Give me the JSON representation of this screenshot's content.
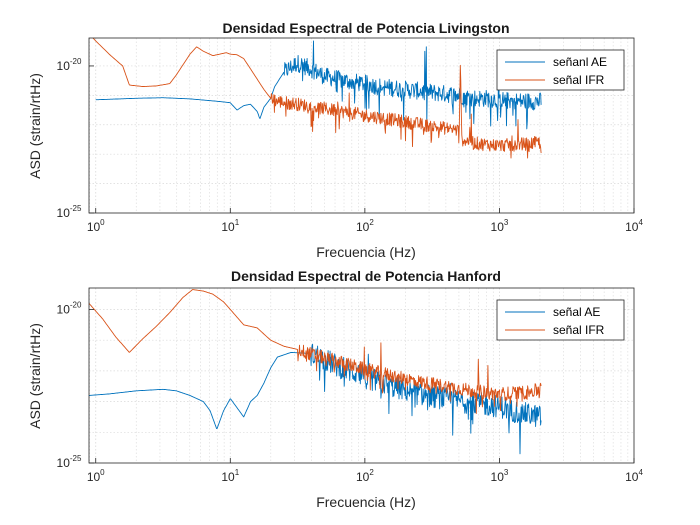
{
  "chart_data": [
    {
      "type": "line",
      "title": "Densidad Espectral de Potencia Livingston",
      "xlabel": "Frecuencia (Hz)",
      "ylabel": "ASD (strain/rtHz)",
      "xscale": "log",
      "yscale": "log",
      "xlim_exp": [
        -0.05,
        4
      ],
      "ylim_exp": [
        -25,
        -19.05
      ],
      "xticks": [
        {
          "base": "10",
          "exp": "0",
          "value": 0
        },
        {
          "base": "10",
          "exp": "1",
          "value": 1
        },
        {
          "base": "10",
          "exp": "2",
          "value": 2
        },
        {
          "base": "10",
          "exp": "3",
          "value": 3
        },
        {
          "base": "10",
          "exp": "4",
          "value": 4
        }
      ],
      "yticks": [
        {
          "base": "10",
          "exp": "-20",
          "value": -20
        },
        {
          "base": "10",
          "exp": "-25",
          "value": -25
        }
      ],
      "grid": true,
      "legend_position": "top-right",
      "series": [
        {
          "name": "señanl AE",
          "color": "#0072BD",
          "points": [
            [
              0.0,
              -21.15
            ],
            [
              0.3,
              -21.1
            ],
            [
              0.5,
              -21.08
            ],
            [
              0.7,
              -21.12
            ],
            [
              0.9,
              -21.2
            ],
            [
              1.0,
              -21.25
            ],
            [
              1.05,
              -21.5
            ],
            [
              1.1,
              -21.35
            ],
            [
              1.15,
              -21.3
            ],
            [
              1.2,
              -21.55
            ],
            [
              1.22,
              -21.8
            ],
            [
              1.25,
              -21.4
            ],
            [
              1.3,
              -21.1
            ],
            [
              1.33,
              -20.7
            ],
            [
              1.4,
              -20.2
            ],
            [
              1.5,
              -19.9
            ],
            [
              1.6,
              -20.1
            ],
            [
              1.7,
              -20.35
            ],
            [
              1.85,
              -20.5
            ],
            [
              2.0,
              -20.6
            ],
            [
              2.1,
              -20.7
            ],
            [
              2.2,
              -20.75
            ],
            [
              2.3,
              -20.8
            ],
            [
              2.4,
              -20.85
            ],
            [
              2.5,
              -20.9
            ],
            [
              2.6,
              -20.95
            ],
            [
              2.7,
              -21.0
            ],
            [
              2.8,
              -21.1
            ],
            [
              2.9,
              -21.1
            ],
            [
              3.0,
              -21.15
            ],
            [
              3.1,
              -21.2
            ],
            [
              3.2,
              -21.2
            ],
            [
              3.31,
              -21.2
            ]
          ],
          "noise_band": [
            1.4,
            3.31,
            0.6
          ]
        },
        {
          "name": "señal IFR",
          "color": "#D95319",
          "points": [
            [
              -0.05,
              -18.9
            ],
            [
              0.0,
              -19.15
            ],
            [
              0.1,
              -19.6
            ],
            [
              0.2,
              -20.0
            ],
            [
              0.25,
              -20.65
            ],
            [
              0.35,
              -20.7
            ],
            [
              0.45,
              -20.68
            ],
            [
              0.55,
              -20.6
            ],
            [
              0.6,
              -20.3
            ],
            [
              0.65,
              -19.95
            ],
            [
              0.7,
              -19.6
            ],
            [
              0.75,
              -19.35
            ],
            [
              0.8,
              -19.5
            ],
            [
              0.87,
              -19.65
            ],
            [
              0.92,
              -19.6
            ],
            [
              0.97,
              -19.55
            ],
            [
              1.0,
              -19.6
            ],
            [
              1.05,
              -19.62
            ],
            [
              1.1,
              -19.75
            ],
            [
              1.15,
              -20.1
            ],
            [
              1.2,
              -20.45
            ],
            [
              1.25,
              -20.8
            ],
            [
              1.3,
              -21.1
            ],
            [
              1.35,
              -21.2
            ],
            [
              1.5,
              -21.3
            ],
            [
              1.7,
              -21.45
            ],
            [
              1.9,
              -21.6
            ],
            [
              2.1,
              -21.75
            ],
            [
              2.3,
              -21.9
            ],
            [
              2.5,
              -22.05
            ],
            [
              2.65,
              -22.15
            ],
            [
              2.7,
              -22.2
            ],
            [
              2.71,
              -19.95
            ],
            [
              2.72,
              -22.5
            ],
            [
              2.85,
              -22.65
            ],
            [
              3.0,
              -22.7
            ],
            [
              3.1,
              -22.68
            ],
            [
              3.2,
              -22.65
            ],
            [
              3.31,
              -22.6
            ]
          ],
          "noise_band": [
            1.3,
            3.31,
            0.45
          ]
        }
      ]
    },
    {
      "type": "line",
      "title": "Densidad Espectral de Potencia Hanford",
      "xlabel": "Frecuencia (Hz)",
      "ylabel": "ASD (strain/rtHz)",
      "xscale": "log",
      "yscale": "log",
      "xlim_exp": [
        -0.05,
        4
      ],
      "ylim_exp": [
        -25,
        -19.3
      ],
      "xticks": [
        {
          "base": "10",
          "exp": "0",
          "value": 0
        },
        {
          "base": "10",
          "exp": "1",
          "value": 1
        },
        {
          "base": "10",
          "exp": "2",
          "value": 2
        },
        {
          "base": "10",
          "exp": "3",
          "value": 3
        },
        {
          "base": "10",
          "exp": "4",
          "value": 4
        }
      ],
      "yticks": [
        {
          "base": "10",
          "exp": "-20",
          "value": -20
        },
        {
          "base": "10",
          "exp": "-25",
          "value": -25
        }
      ],
      "grid": true,
      "legend_position": "top-right",
      "series": [
        {
          "name": "señal AE",
          "color": "#0072BD",
          "points": [
            [
              -0.05,
              -22.8
            ],
            [
              0.1,
              -22.75
            ],
            [
              0.3,
              -22.65
            ],
            [
              0.5,
              -22.6
            ],
            [
              0.6,
              -22.65
            ],
            [
              0.7,
              -22.8
            ],
            [
              0.8,
              -23.0
            ],
            [
              0.85,
              -23.3
            ],
            [
              0.9,
              -23.9
            ],
            [
              0.95,
              -23.3
            ],
            [
              1.0,
              -22.9
            ],
            [
              1.05,
              -23.2
            ],
            [
              1.1,
              -23.5
            ],
            [
              1.15,
              -23.0
            ],
            [
              1.2,
              -22.8
            ],
            [
              1.25,
              -22.4
            ],
            [
              1.3,
              -21.9
            ],
            [
              1.35,
              -21.55
            ],
            [
              1.45,
              -21.4
            ],
            [
              1.55,
              -21.42
            ],
            [
              1.65,
              -21.5
            ],
            [
              1.8,
              -21.85
            ],
            [
              2.0,
              -22.2
            ],
            [
              2.2,
              -22.5
            ],
            [
              2.4,
              -22.75
            ],
            [
              2.6,
              -22.9
            ],
            [
              2.8,
              -23.05
            ],
            [
              3.0,
              -23.15
            ],
            [
              3.1,
              -23.3
            ],
            [
              3.2,
              -23.4
            ],
            [
              3.31,
              -23.5
            ]
          ],
          "noise_band": [
            1.6,
            3.31,
            0.75
          ]
        },
        {
          "name": "señal IFR",
          "color": "#D95319",
          "points": [
            [
              -0.05,
              -19.8
            ],
            [
              0.05,
              -20.3
            ],
            [
              0.15,
              -20.9
            ],
            [
              0.25,
              -21.4
            ],
            [
              0.35,
              -20.95
            ],
            [
              0.45,
              -20.55
            ],
            [
              0.55,
              -20.1
            ],
            [
              0.65,
              -19.6
            ],
            [
              0.72,
              -19.35
            ],
            [
              0.8,
              -19.4
            ],
            [
              0.87,
              -19.5
            ],
            [
              0.95,
              -19.75
            ],
            [
              1.05,
              -20.25
            ],
            [
              1.1,
              -20.5
            ],
            [
              1.2,
              -20.6
            ],
            [
              1.3,
              -21.0
            ],
            [
              1.4,
              -21.2
            ],
            [
              1.5,
              -21.3
            ],
            [
              1.6,
              -21.45
            ],
            [
              1.8,
              -21.7
            ],
            [
              2.0,
              -21.95
            ],
            [
              2.2,
              -22.15
            ],
            [
              2.4,
              -22.35
            ],
            [
              2.6,
              -22.5
            ],
            [
              2.8,
              -22.65
            ],
            [
              3.0,
              -22.75
            ],
            [
              3.2,
              -22.7
            ],
            [
              3.31,
              -22.6
            ]
          ],
          "noise_band": [
            1.5,
            3.31,
            0.45
          ]
        }
      ]
    }
  ]
}
